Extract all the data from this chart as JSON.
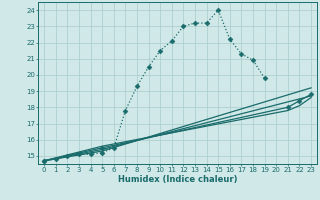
{
  "xlabel": "Humidex (Indice chaleur)",
  "bg_color": "#d0e8e8",
  "grid_color": "#a8cccc",
  "line_color": "#1a6b6b",
  "xlim": [
    -0.5,
    23.5
  ],
  "ylim": [
    14.5,
    24.5
  ],
  "yticks": [
    15,
    16,
    17,
    18,
    19,
    20,
    21,
    22,
    23,
    24
  ],
  "xticks": [
    0,
    1,
    2,
    3,
    4,
    5,
    6,
    7,
    8,
    9,
    10,
    11,
    12,
    13,
    14,
    15,
    16,
    17,
    18,
    19,
    20,
    21,
    22,
    23
  ],
  "series": [
    {
      "x": [
        0,
        1,
        2,
        3,
        4,
        5,
        6,
        7,
        8,
        9,
        10,
        11,
        12,
        13,
        14,
        15,
        16,
        17,
        18,
        19
      ],
      "y": [
        14.7,
        14.8,
        15.0,
        15.1,
        15.1,
        15.2,
        15.5,
        17.8,
        19.3,
        20.5,
        21.5,
        22.1,
        23.0,
        23.2,
        23.2,
        24.0,
        22.2,
        21.3,
        20.9,
        19.8
      ],
      "marker": "D",
      "marker_size": 2.5,
      "linewidth": 0.9,
      "linestyle": ":"
    },
    {
      "x": [
        0,
        5,
        23
      ],
      "y": [
        14.7,
        15.3,
        19.2
      ],
      "marker": null,
      "linewidth": 0.9,
      "linestyle": "-"
    },
    {
      "x": [
        0,
        5,
        23
      ],
      "y": [
        14.7,
        15.4,
        18.7
      ],
      "marker": null,
      "linewidth": 0.9,
      "linestyle": "-"
    },
    {
      "x": [
        0,
        5,
        21,
        22,
        23
      ],
      "y": [
        14.7,
        15.5,
        18.0,
        18.4,
        18.8
      ],
      "marker": "D",
      "marker_size": 2.5,
      "linewidth": 0.9,
      "linestyle": "-"
    },
    {
      "x": [
        0,
        5,
        21,
        22,
        23
      ],
      "y": [
        14.7,
        15.6,
        17.8,
        18.1,
        18.6
      ],
      "marker": null,
      "linewidth": 0.9,
      "linestyle": "-"
    }
  ]
}
